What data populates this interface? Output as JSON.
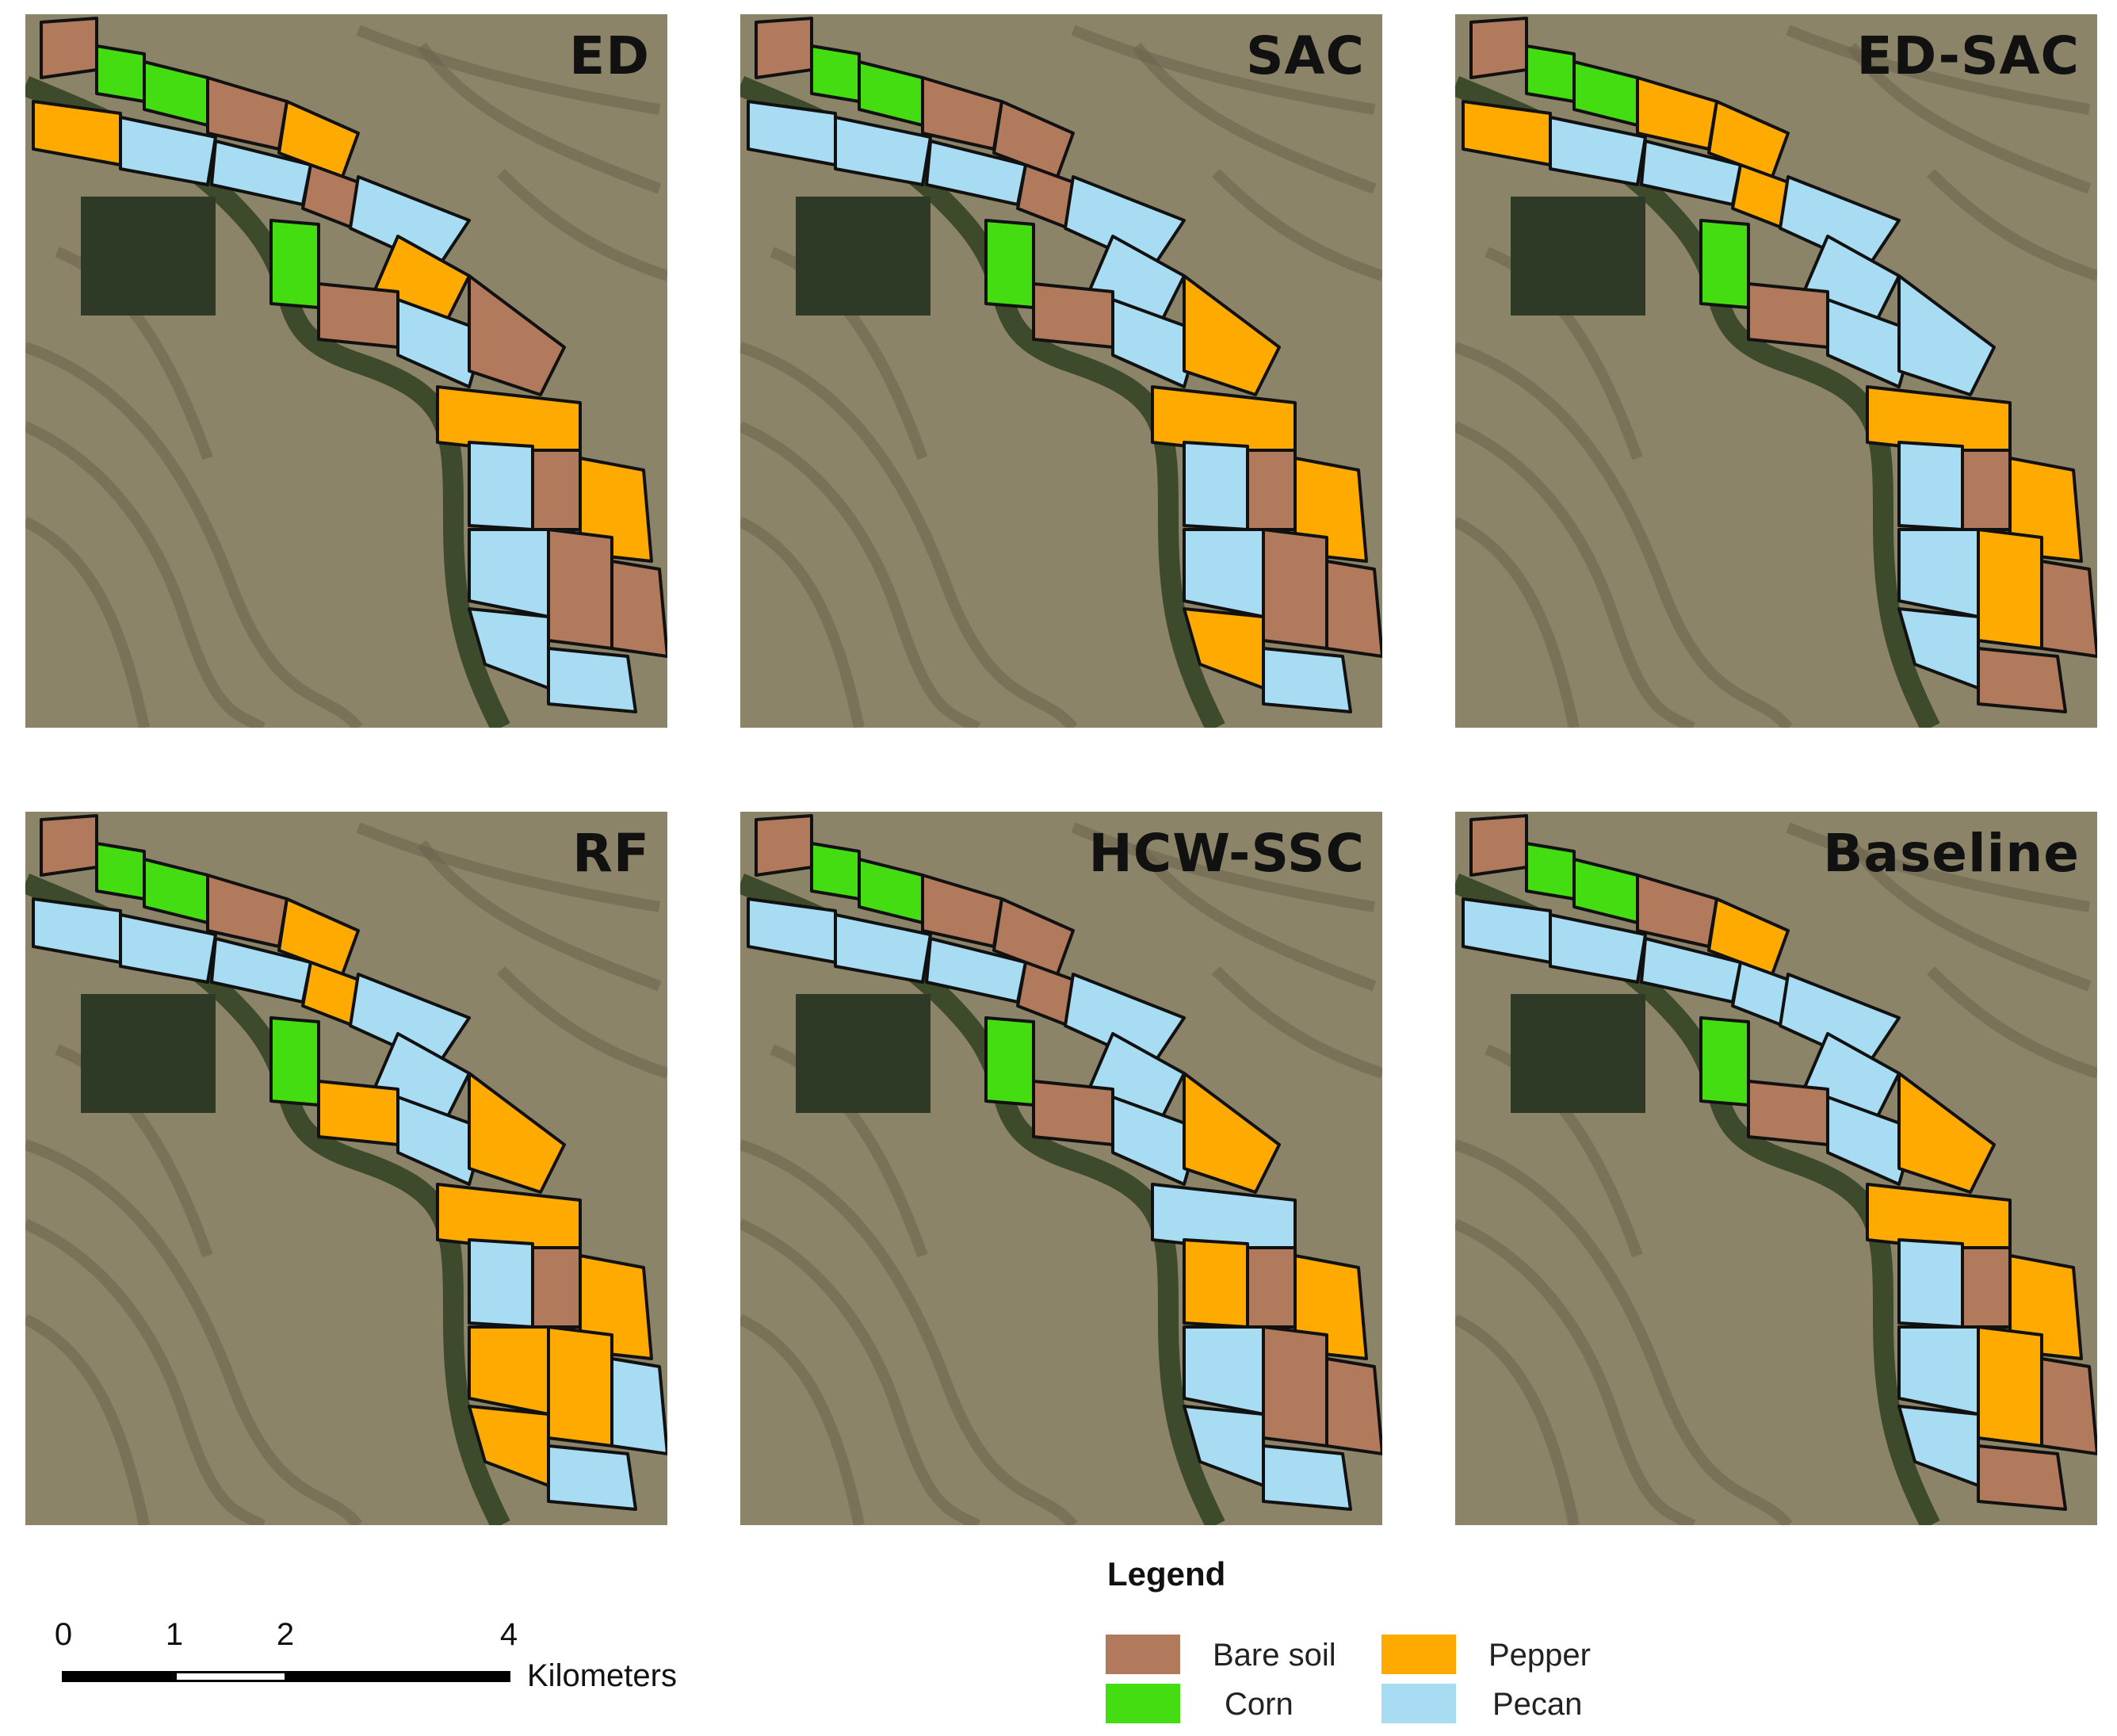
{
  "colors": {
    "bare_soil": "#b17a5c",
    "corn": "#44dd11",
    "pepper": "#ffaa00",
    "pecan": "#a8dcf2",
    "desert": "#8c8468",
    "field_outline": "#111111"
  },
  "panels": [
    {
      "title": "ED",
      "classes": [
        "bare_soil",
        "corn",
        "corn",
        "bare_soil",
        "pepper",
        "pecan",
        "pecan",
        "pepper",
        "bare_soil",
        "pecan",
        "pepper",
        "corn",
        "bare_soil",
        "pecan",
        "bare_soil",
        "pepper",
        "pecan",
        "bare_soil",
        "pepper",
        "pecan",
        "bare_soil",
        "bare_soil",
        "pecan",
        "pecan"
      ]
    },
    {
      "title": "SAC",
      "classes": [
        "bare_soil",
        "corn",
        "corn",
        "bare_soil",
        "pecan",
        "pecan",
        "pecan",
        "bare_soil",
        "bare_soil",
        "pecan",
        "pecan",
        "corn",
        "bare_soil",
        "pecan",
        "pepper",
        "pepper",
        "pecan",
        "bare_soil",
        "pepper",
        "pecan",
        "bare_soil",
        "bare_soil",
        "pepper",
        "pecan"
      ]
    },
    {
      "title": "ED-SAC",
      "classes": [
        "bare_soil",
        "corn",
        "corn",
        "pepper",
        "pepper",
        "pecan",
        "pecan",
        "pepper",
        "pepper",
        "pecan",
        "pecan",
        "corn",
        "bare_soil",
        "pecan",
        "pecan",
        "pepper",
        "pecan",
        "bare_soil",
        "pepper",
        "pecan",
        "pepper",
        "bare_soil",
        "pecan",
        "bare_soil"
      ]
    },
    {
      "title": "RF",
      "classes": [
        "bare_soil",
        "corn",
        "corn",
        "bare_soil",
        "pecan",
        "pecan",
        "pecan",
        "pepper",
        "pepper",
        "pecan",
        "pecan",
        "corn",
        "pepper",
        "pecan",
        "pepper",
        "pepper",
        "pecan",
        "bare_soil",
        "pepper",
        "pepper",
        "pepper",
        "pecan",
        "pepper",
        "pecan"
      ]
    },
    {
      "title": "HCW-SSC",
      "classes": [
        "bare_soil",
        "corn",
        "corn",
        "bare_soil",
        "pecan",
        "pecan",
        "pecan",
        "bare_soil",
        "bare_soil",
        "pecan",
        "pecan",
        "corn",
        "bare_soil",
        "pecan",
        "pepper",
        "pecan",
        "pepper",
        "bare_soil",
        "pepper",
        "pecan",
        "bare_soil",
        "bare_soil",
        "pecan",
        "pecan"
      ]
    },
    {
      "title": "Baseline",
      "classes": [
        "bare_soil",
        "corn",
        "corn",
        "bare_soil",
        "pecan",
        "pecan",
        "pecan",
        "pepper",
        "pecan",
        "pecan",
        "pecan",
        "corn",
        "bare_soil",
        "pecan",
        "pepper",
        "pepper",
        "pecan",
        "bare_soil",
        "pepper",
        "pecan",
        "pepper",
        "bare_soil",
        "pecan",
        "bare_soil"
      ]
    }
  ],
  "legend": {
    "title": "Legend",
    "items": [
      {
        "label": "Bare soil",
        "key": "bare_soil"
      },
      {
        "label": "Pepper",
        "key": "pepper"
      },
      {
        "label": "Corn",
        "key": "corn"
      },
      {
        "label": "Pecan",
        "key": "pecan"
      }
    ]
  },
  "scale_bar": {
    "ticks": [
      "0",
      "1",
      "2",
      "4"
    ],
    "unit": "Kilometers"
  }
}
